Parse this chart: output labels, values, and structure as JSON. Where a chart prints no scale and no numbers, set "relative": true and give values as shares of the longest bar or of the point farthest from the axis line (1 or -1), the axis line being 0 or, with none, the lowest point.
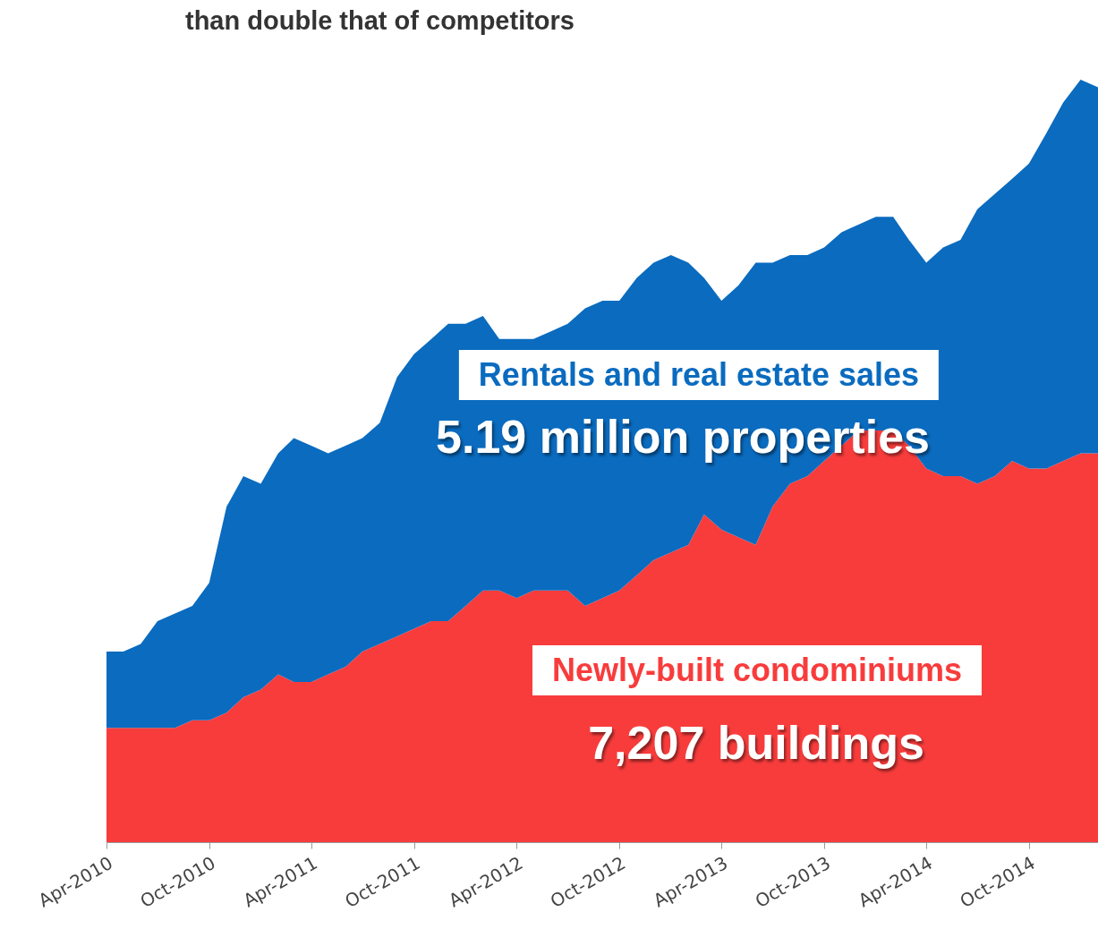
{
  "chart_data": {
    "type": "area",
    "title": "than double that of competitors",
    "relative": true,
    "stacked": true,
    "x": [
      "2010-04",
      "2010-05",
      "2010-06",
      "2010-07",
      "2010-08",
      "2010-09",
      "2010-10",
      "2010-11",
      "2010-12",
      "2011-01",
      "2011-02",
      "2011-03",
      "2011-04",
      "2011-05",
      "2011-06",
      "2011-07",
      "2011-08",
      "2011-09",
      "2011-10",
      "2011-11",
      "2011-12",
      "2012-01",
      "2012-02",
      "2012-03",
      "2012-04",
      "2012-05",
      "2012-06",
      "2012-07",
      "2012-08",
      "2012-09",
      "2012-10",
      "2012-11",
      "2012-12",
      "2013-01",
      "2013-02",
      "2013-03",
      "2013-04",
      "2013-05",
      "2013-06",
      "2013-07",
      "2013-08",
      "2013-09",
      "2013-10",
      "2013-11",
      "2013-12",
      "2014-01",
      "2014-02",
      "2014-03",
      "2014-04",
      "2014-05",
      "2014-06",
      "2014-07",
      "2014-08",
      "2014-09",
      "2014-10",
      "2014-11",
      "2014-12",
      "2015-01",
      "2015-02"
    ],
    "xlim": [
      "2010-04",
      "2015-02"
    ],
    "xticks": [
      {
        "value": "2010-04",
        "label": "Apr-2010"
      },
      {
        "value": "2010-10",
        "label": "Oct-2010"
      },
      {
        "value": "2011-04",
        "label": "Apr-2011"
      },
      {
        "value": "2011-10",
        "label": "Oct-2011"
      },
      {
        "value": "2012-04",
        "label": "Apr-2012"
      },
      {
        "value": "2012-10",
        "label": "Oct-2012"
      },
      {
        "value": "2013-04",
        "label": "Apr-2013"
      },
      {
        "value": "2013-10",
        "label": "Oct-2013"
      },
      {
        "value": "2014-04",
        "label": "Apr-2014"
      },
      {
        "value": "2014-10",
        "label": "Oct-2014"
      }
    ],
    "series": [
      {
        "name": "Newly-built condominiums",
        "color": "#f83c3c",
        "values": [
          0.15,
          0.15,
          0.15,
          0.15,
          0.15,
          0.16,
          0.16,
          0.17,
          0.19,
          0.2,
          0.22,
          0.21,
          0.21,
          0.22,
          0.23,
          0.25,
          0.26,
          0.27,
          0.28,
          0.29,
          0.29,
          0.31,
          0.33,
          0.33,
          0.32,
          0.33,
          0.33,
          0.33,
          0.31,
          0.32,
          0.33,
          0.35,
          0.37,
          0.38,
          0.39,
          0.43,
          0.41,
          0.4,
          0.39,
          0.44,
          0.47,
          0.48,
          0.5,
          0.52,
          0.54,
          0.54,
          0.54,
          0.52,
          0.49,
          0.48,
          0.48,
          0.47,
          0.48,
          0.5,
          0.49,
          0.49,
          0.5,
          0.51,
          0.51
        ]
      },
      {
        "name": "Rentals and real estate sales",
        "color": "#0a6bbf",
        "values": [
          0.1,
          0.1,
          0.11,
          0.14,
          0.15,
          0.15,
          0.18,
          0.27,
          0.29,
          0.27,
          0.29,
          0.32,
          0.31,
          0.29,
          0.29,
          0.28,
          0.29,
          0.34,
          0.36,
          0.37,
          0.39,
          0.37,
          0.36,
          0.33,
          0.34,
          0.33,
          0.34,
          0.35,
          0.39,
          0.39,
          0.38,
          0.39,
          0.39,
          0.39,
          0.37,
          0.31,
          0.3,
          0.33,
          0.37,
          0.32,
          0.3,
          0.29,
          0.28,
          0.28,
          0.27,
          0.28,
          0.28,
          0.27,
          0.27,
          0.3,
          0.31,
          0.36,
          0.37,
          0.37,
          0.4,
          0.44,
          0.47,
          0.49,
          0.48
        ]
      }
    ],
    "annotations": [
      "5.19 million properties",
      "7,207 buildings"
    ],
    "legend": false,
    "grid": false
  }
}
